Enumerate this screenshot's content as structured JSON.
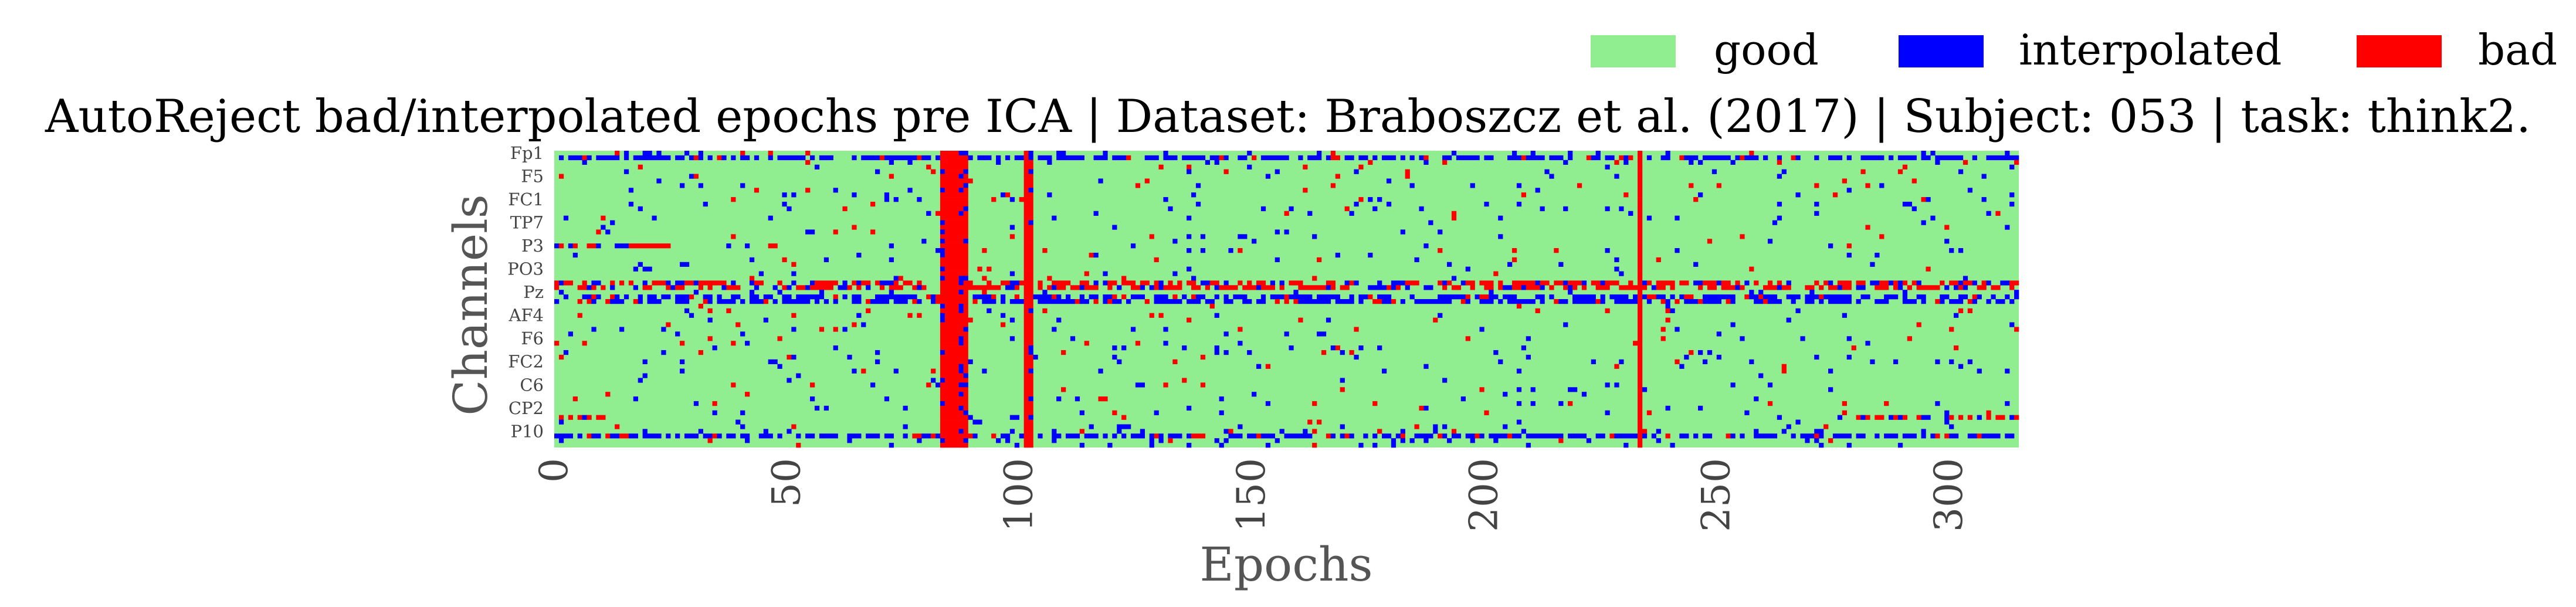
{
  "chart_data": {
    "type": "heatmap",
    "title": "AutoReject bad/interpolated epochs pre ICA | Dataset: Braboszcz et al. (2017) | Subject: 053 | task: think2.",
    "xlabel": "Epochs",
    "ylabel": "Channels",
    "x_range": [
      0,
      315
    ],
    "x_ticks": [
      0,
      50,
      100,
      150,
      200,
      250,
      300
    ],
    "y_tick_labels": [
      "Fp1",
      "F5",
      "FC1",
      "TP7",
      "P3",
      "PO3",
      "Pz",
      "AF4",
      "F6",
      "FC2",
      "C6",
      "CP2",
      "P10"
    ],
    "n_channels": 64,
    "n_epochs": 315,
    "colormap": {
      "good": "#90ee90",
      "interpolated": "#0000ff",
      "bad": "#ff0000"
    },
    "legend": {
      "placement": "top-right",
      "entries": [
        {
          "label": "good",
          "color": "#90ee90"
        },
        {
          "label": "interpolated",
          "color": "#0000ff"
        },
        {
          "label": "bad",
          "color": "#ff0000"
        }
      ]
    },
    "bad_epochs_all_channels": [
      84,
      85,
      86,
      101,
      233
    ],
    "mostly_bad_epochs": [
      83,
      87,
      88,
      102
    ],
    "bad_channel_rows": [
      {
        "channel_index": 28,
        "epochs_range": [
          0,
          315
        ]
      },
      {
        "channel_index": 29,
        "epochs_range": [
          0,
          315
        ]
      },
      {
        "channel_index": 20,
        "epochs_range": [
          0,
          25
        ]
      },
      {
        "channel_index": 57,
        "epochs_range": [
          0,
          12
        ]
      },
      {
        "channel_index": 57,
        "epochs_range": [
          280,
          315
        ]
      }
    ],
    "interpolated_channel_rows": [
      {
        "channel_index": 31,
        "epochs_range": [
          0,
          315
        ]
      },
      {
        "channel_index": 32,
        "epochs_range": [
          0,
          315
        ]
      },
      {
        "channel_index": 61,
        "epochs_range": [
          0,
          315
        ]
      },
      {
        "channel_index": 1,
        "epochs_range": [
          0,
          315
        ]
      }
    ],
    "grid": false
  }
}
